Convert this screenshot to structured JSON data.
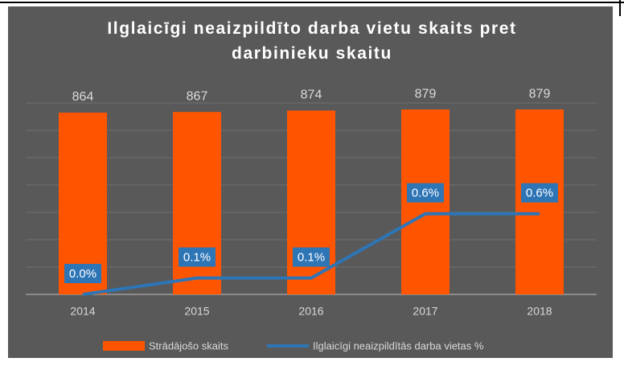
{
  "chart_data": {
    "type": "bar-line",
    "title": "Ilglaicīgi neaizpildīto darba vietu skaits pret darbinieku skaitu",
    "categories": [
      "2014",
      "2015",
      "2016",
      "2017",
      "2018"
    ],
    "series": [
      {
        "name": "Strādājošo skaits",
        "type": "bar",
        "color": "#ff5500",
        "values": [
          864,
          867,
          874,
          879,
          879
        ]
      },
      {
        "name": "Ilglaicīgi neaizpildītās darba vietas %",
        "type": "line",
        "axis": "y2",
        "color": "#2e75b6",
        "values": [
          0.0,
          0.12,
          0.12,
          0.59,
          0.59
        ],
        "value_labels": [
          "0.0%",
          "0.1%",
          "0.1%",
          "0.6%",
          "0.6%"
        ]
      }
    ],
    "ylim": [
      0,
      910
    ],
    "yticks": [
      0,
      130,
      260,
      390,
      520,
      650,
      780,
      910
    ],
    "y2lim": [
      0,
      1.4
    ],
    "grid": true,
    "legend": "bottom"
  }
}
